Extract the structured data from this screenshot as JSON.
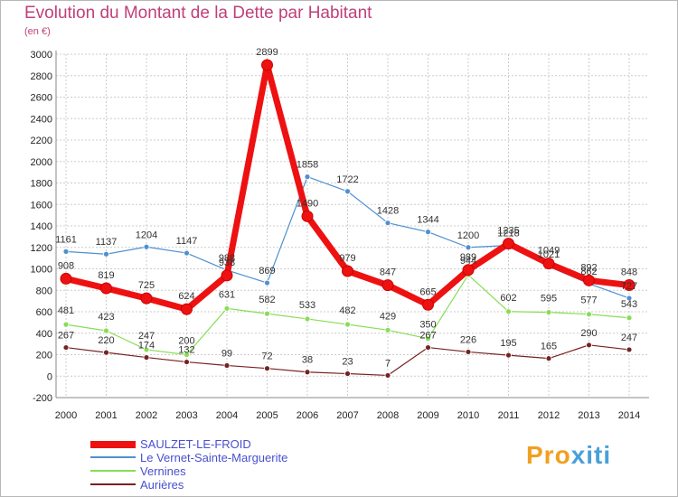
{
  "page": {
    "title": "Evolution du Montant de la Dette par Habitant",
    "subtitle": "(en €)",
    "brand_part1": "Pro",
    "brand_part2": "xiti"
  },
  "chart_data": {
    "type": "line",
    "title": "Evolution du Montant de la Dette par Habitant",
    "ylabel": "(en €)",
    "xlabel": "",
    "x": [
      2000,
      2001,
      2002,
      2003,
      2004,
      2005,
      2006,
      2007,
      2008,
      2009,
      2010,
      2011,
      2012,
      2013,
      2014
    ],
    "ylim": [
      -200,
      3000
    ],
    "yticks": [
      -200,
      0,
      200,
      400,
      600,
      800,
      1000,
      1200,
      1400,
      1600,
      1800,
      2000,
      2200,
      2400,
      2600,
      2800,
      3000
    ],
    "grid": true,
    "legend_position": "bottom-left",
    "series": [
      {
        "name": "SAULZET-LE-FROID",
        "color": "#ee1111",
        "values": [
          908,
          819,
          725,
          624,
          938,
          2899,
          1490,
          979,
          847,
          665,
          989,
          1235,
          1049,
          892,
          848
        ]
      },
      {
        "name": "Le Vernet-Sainte-Marguerite",
        "color": "#4f90d0",
        "values": [
          1161,
          1137,
          1204,
          1147,
          988,
          869,
          1858,
          1722,
          1428,
          1344,
          1200,
          1218,
          1021,
          862,
          727
        ]
      },
      {
        "name": "Vernines",
        "color": "#88dd55",
        "values": [
          481,
          423,
          247,
          200,
          631,
          582,
          533,
          482,
          429,
          350,
          944,
          602,
          595,
          577,
          543
        ]
      },
      {
        "name": "Aurières",
        "color": "#772222",
        "values": [
          267,
          220,
          174,
          132,
          99,
          72,
          38,
          23,
          7,
          267,
          226,
          195,
          165,
          290,
          247
        ]
      }
    ]
  }
}
